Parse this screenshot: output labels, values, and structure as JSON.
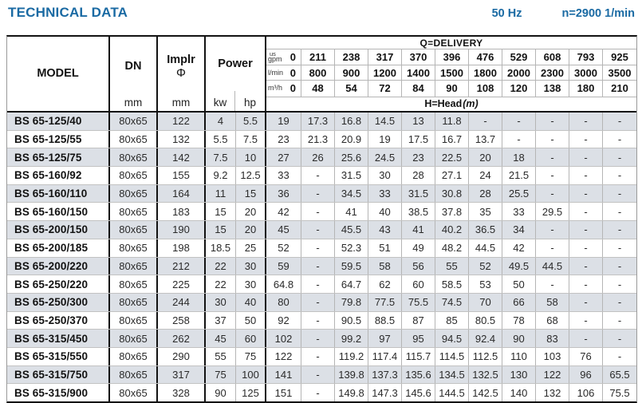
{
  "title": "TECHNICAL DATA",
  "frequency": "50 Hz",
  "speed": "n=2900 1/min",
  "table": {
    "model_header": "MODEL",
    "dn_header": "DN",
    "implr_header": "Implr",
    "implr_phi": "Φ",
    "power_header": "Power",
    "unit_mm": "mm",
    "unit_kw": "kw",
    "unit_hp": "hp",
    "delivery_title": "Q=DELIVERY",
    "head_title": "H=Head",
    "head_unit": "(m)",
    "flow_rows": [
      {
        "label_top": "us",
        "label": "gpm",
        "zero": "0",
        "values": [
          "211",
          "238",
          "317",
          "370",
          "396",
          "476",
          "529",
          "608",
          "793",
          "925"
        ]
      },
      {
        "label": "l/min",
        "zero": "0",
        "values": [
          "800",
          "900",
          "1200",
          "1400",
          "1500",
          "1800",
          "2000",
          "2300",
          "3000",
          "3500"
        ]
      },
      {
        "label": "m³/h",
        "zero": "0",
        "values": [
          "48",
          "54",
          "72",
          "84",
          "90",
          "108",
          "120",
          "138",
          "180",
          "210"
        ]
      }
    ],
    "rows": [
      {
        "model": "BS 65-125/40",
        "dn": "80x65",
        "implr": "122",
        "kw": "4",
        "hp": "5.5",
        "head": [
          "19",
          "17.3",
          "16.8",
          "14.5",
          "13",
          "11.8",
          "-",
          "-",
          "-",
          "-",
          "-"
        ]
      },
      {
        "model": "BS 65-125/55",
        "dn": "80x65",
        "implr": "132",
        "kw": "5.5",
        "hp": "7.5",
        "head": [
          "23",
          "21.3",
          "20.9",
          "19",
          "17.5",
          "16.7",
          "13.7",
          "-",
          "-",
          "-",
          "-"
        ]
      },
      {
        "model": "BS 65-125/75",
        "dn": "80x65",
        "implr": "142",
        "kw": "7.5",
        "hp": "10",
        "head": [
          "27",
          "26",
          "25.6",
          "24.5",
          "23",
          "22.5",
          "20",
          "18",
          "-",
          "-",
          "-"
        ]
      },
      {
        "model": "BS 65-160/92",
        "dn": "80x65",
        "implr": "155",
        "kw": "9.2",
        "hp": "12.5",
        "head": [
          "33",
          "-",
          "31.5",
          "30",
          "28",
          "27.1",
          "24",
          "21.5",
          "-",
          "-",
          "-"
        ]
      },
      {
        "model": "BS 65-160/110",
        "dn": "80x65",
        "implr": "164",
        "kw": "11",
        "hp": "15",
        "head": [
          "36",
          "-",
          "34.5",
          "33",
          "31.5",
          "30.8",
          "28",
          "25.5",
          "-",
          "-",
          "-"
        ]
      },
      {
        "model": "BS 65-160/150",
        "dn": "80x65",
        "implr": "183",
        "kw": "15",
        "hp": "20",
        "head": [
          "42",
          "-",
          "41",
          "40",
          "38.5",
          "37.8",
          "35",
          "33",
          "29.5",
          "-",
          "-"
        ]
      },
      {
        "model": "BS 65-200/150",
        "dn": "80x65",
        "implr": "190",
        "kw": "15",
        "hp": "20",
        "head": [
          "45",
          "-",
          "45.5",
          "43",
          "41",
          "40.2",
          "36.5",
          "34",
          "-",
          "-",
          "-"
        ]
      },
      {
        "model": "BS 65-200/185",
        "dn": "80x65",
        "implr": "198",
        "kw": "18.5",
        "hp": "25",
        "head": [
          "52",
          "-",
          "52.3",
          "51",
          "49",
          "48.2",
          "44.5",
          "42",
          "-",
          "-",
          "-"
        ]
      },
      {
        "model": "BS 65-200/220",
        "dn": "80x65",
        "implr": "212",
        "kw": "22",
        "hp": "30",
        "head": [
          "59",
          "-",
          "59.5",
          "58",
          "56",
          "55",
          "52",
          "49.5",
          "44.5",
          "-",
          "-"
        ]
      },
      {
        "model": "BS 65-250/220",
        "dn": "80x65",
        "implr": "225",
        "kw": "22",
        "hp": "30",
        "head": [
          "64.8",
          "-",
          "64.7",
          "62",
          "60",
          "58.5",
          "53",
          "50",
          "-",
          "-",
          "-"
        ]
      },
      {
        "model": "BS 65-250/300",
        "dn": "80x65",
        "implr": "244",
        "kw": "30",
        "hp": "40",
        "head": [
          "80",
          "-",
          "79.8",
          "77.5",
          "75.5",
          "74.5",
          "70",
          "66",
          "58",
          "-",
          "-"
        ]
      },
      {
        "model": "BS 65-250/370",
        "dn": "80x65",
        "implr": "258",
        "kw": "37",
        "hp": "50",
        "head": [
          "92",
          "-",
          "90.5",
          "88.5",
          "87",
          "85",
          "80.5",
          "78",
          "68",
          "-",
          "-"
        ]
      },
      {
        "model": "BS 65-315/450",
        "dn": "80x65",
        "implr": "262",
        "kw": "45",
        "hp": "60",
        "head": [
          "102",
          "-",
          "99.2",
          "97",
          "95",
          "94.5",
          "92.4",
          "90",
          "83",
          "-",
          "-"
        ]
      },
      {
        "model": "BS 65-315/550",
        "dn": "80x65",
        "implr": "290",
        "kw": "55",
        "hp": "75",
        "head": [
          "122",
          "-",
          "119.2",
          "117.4",
          "115.7",
          "114.5",
          "112.5",
          "110",
          "103",
          "76",
          "-"
        ]
      },
      {
        "model": "BS 65-315/750",
        "dn": "80x65",
        "implr": "317",
        "kw": "75",
        "hp": "100",
        "head": [
          "141",
          "-",
          "139.8",
          "137.3",
          "135.6",
          "134.5",
          "132.5",
          "130",
          "122",
          "96",
          "65.5"
        ]
      },
      {
        "model": "BS 65-315/900",
        "dn": "80x65",
        "implr": "328",
        "kw": "90",
        "hp": "125",
        "head": [
          "151",
          "-",
          "149.8",
          "147.3",
          "145.6",
          "144.5",
          "142.5",
          "140",
          "132",
          "106",
          "75.5"
        ]
      }
    ]
  }
}
